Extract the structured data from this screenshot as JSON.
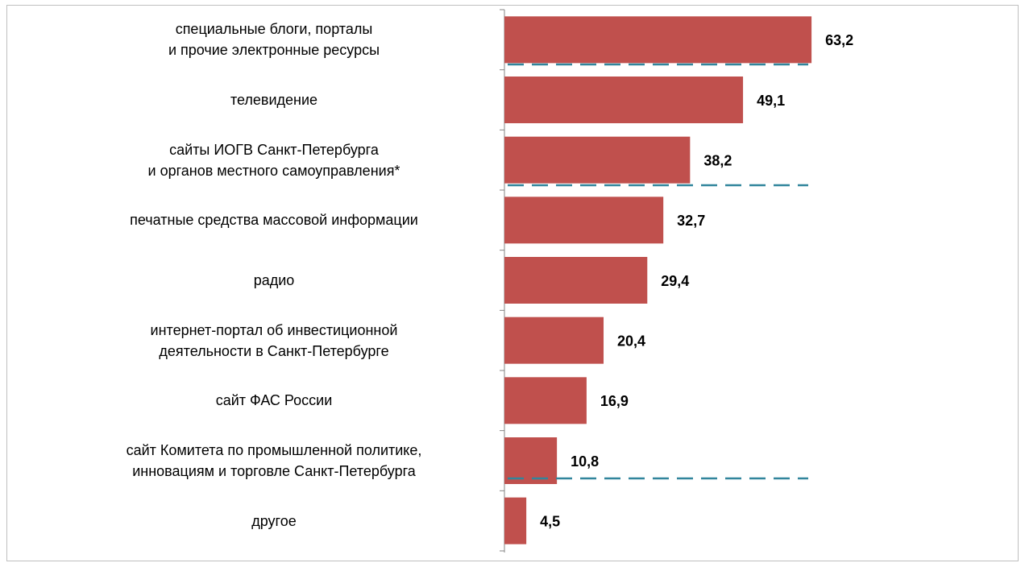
{
  "chart_data": {
    "type": "bar",
    "orientation": "horizontal",
    "categories": [
      "специальные блоги, порталы\nи прочие электронные ресурсы",
      "телевидение",
      "сайты ИОГВ Санкт-Петербурга\nи органов местного самоуправления*",
      "печатные средства массовой информации",
      "радио",
      "интернет-портал об инвестиционной\nдеятельности в Санкт-Петербурге",
      "сайт ФАС России",
      "сайт Комитета по промышленной политике,\nинновациям и торговле Санкт-Петербурга",
      "другое"
    ],
    "values": [
      63.2,
      49.1,
      38.2,
      32.7,
      29.4,
      20.4,
      16.9,
      10.8,
      4.5
    ],
    "value_labels": [
      "63,2",
      "49,1",
      "38,2",
      "32,7",
      "29,4",
      "20,4",
      "16,9",
      "10,8",
      "4,5"
    ],
    "color": "#c0504d",
    "xlim": [
      0,
      100
    ]
  }
}
